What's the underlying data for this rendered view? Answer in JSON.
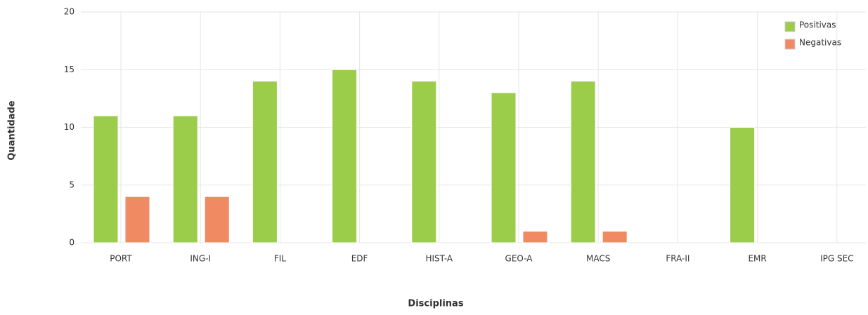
{
  "chart_data": {
    "type": "bar",
    "x_label": "Disciplinas",
    "y_label": "Quantidade",
    "categories": [
      "PORT",
      "ING-I",
      "FIL",
      "EDF",
      "HIST-A",
      "GEO-A",
      "MACS",
      "FRA-II",
      "EMR",
      "IPG SEC"
    ],
    "series": [
      {
        "name": "Positivas",
        "color": "#9bcc4a",
        "values": [
          11,
          11,
          14,
          15,
          14,
          13,
          14,
          0,
          10,
          0
        ]
      },
      {
        "name": "Negativas",
        "color": "#ef8a62",
        "values": [
          4,
          4,
          0,
          0,
          0,
          1,
          1,
          0,
          0,
          0
        ]
      }
    ],
    "ylim": [
      0,
      20
    ],
    "yticks": [
      0,
      5,
      10,
      15,
      20
    ],
    "grid": true,
    "legend": "top-right"
  }
}
